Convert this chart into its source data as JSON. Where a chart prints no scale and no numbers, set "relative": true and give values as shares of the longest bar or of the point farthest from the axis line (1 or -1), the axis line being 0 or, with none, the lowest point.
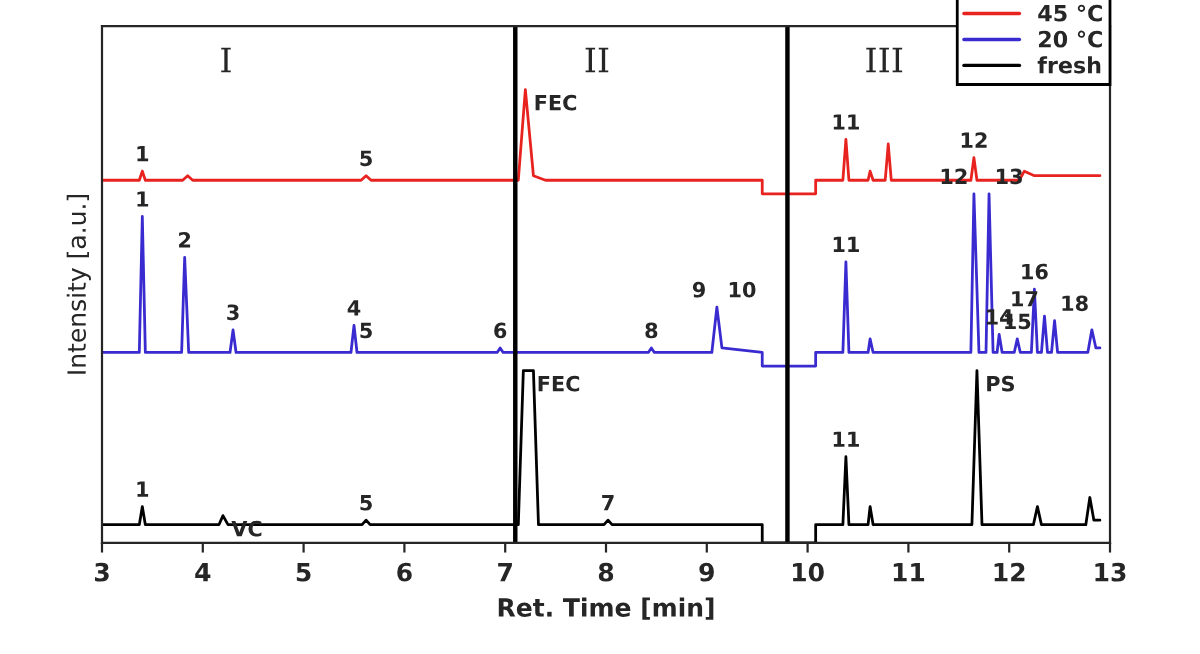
{
  "chart_data": {
    "type": "line",
    "relative": true,
    "xlabel": "Ret. Time [min]",
    "ylabel": "Intensity [a.u.]",
    "xlim": [
      3,
      13
    ],
    "xticks": [
      3,
      4,
      5,
      6,
      7,
      8,
      9,
      10,
      11,
      12,
      13
    ],
    "legend": "top right",
    "grid": false,
    "marker": "none",
    "line_style": "solid",
    "series": [
      {
        "name": "45 °C",
        "color": "#e8231f",
        "x": [
          3.0,
          3.37,
          3.4,
          3.43,
          3.8,
          3.85,
          3.9,
          5.57,
          5.62,
          5.67,
          7.13,
          7.2,
          7.28,
          7.4,
          9.55,
          9.55,
          10.08,
          10.08,
          10.35,
          10.38,
          10.41,
          10.6,
          10.62,
          10.65,
          10.77,
          10.8,
          10.83,
          11.62,
          11.65,
          11.68,
          12.1,
          12.15,
          12.25,
          12.9
        ],
        "values": [
          0.8,
          0.8,
          0.82,
          0.8,
          0.8,
          0.81,
          0.8,
          0.8,
          0.81,
          0.8,
          0.8,
          1.0,
          0.81,
          0.8,
          0.8,
          0.77,
          0.77,
          0.8,
          0.8,
          0.89,
          0.8,
          0.8,
          0.82,
          0.8,
          0.8,
          0.88,
          0.8,
          0.8,
          0.85,
          0.8,
          0.8,
          0.82,
          0.81,
          0.81
        ]
      },
      {
        "name": "20 °C",
        "color": "#3a2bd0",
        "x": [
          3.0,
          3.37,
          3.4,
          3.43,
          3.79,
          3.82,
          3.86,
          4.27,
          4.3,
          4.33,
          5.47,
          5.5,
          5.53,
          6.92,
          6.95,
          6.98,
          8.42,
          8.45,
          8.48,
          9.05,
          9.1,
          9.15,
          9.55,
          9.55,
          10.08,
          10.08,
          10.35,
          10.38,
          10.41,
          10.6,
          10.62,
          10.65,
          11.62,
          11.65,
          11.7,
          11.77,
          11.8,
          11.84,
          11.88,
          11.9,
          11.93,
          12.05,
          12.08,
          12.11,
          12.22,
          12.25,
          12.28,
          12.32,
          12.35,
          12.38,
          12.42,
          12.45,
          12.48,
          12.78,
          12.82,
          12.86,
          12.9
        ],
        "values": [
          0.42,
          0.42,
          0.72,
          0.42,
          0.42,
          0.63,
          0.42,
          0.42,
          0.47,
          0.42,
          0.42,
          0.48,
          0.42,
          0.42,
          0.43,
          0.42,
          0.42,
          0.43,
          0.42,
          0.42,
          0.52,
          0.43,
          0.42,
          0.39,
          0.39,
          0.42,
          0.42,
          0.62,
          0.42,
          0.42,
          0.45,
          0.42,
          0.42,
          0.77,
          0.42,
          0.42,
          0.77,
          0.42,
          0.42,
          0.46,
          0.42,
          0.42,
          0.45,
          0.42,
          0.42,
          0.56,
          0.42,
          0.42,
          0.5,
          0.42,
          0.42,
          0.49,
          0.42,
          0.42,
          0.47,
          0.43,
          0.43
        ]
      },
      {
        "name": "fresh",
        "color": "#000000",
        "x": [
          3.0,
          3.37,
          3.4,
          3.43,
          4.16,
          4.2,
          4.25,
          5.58,
          5.62,
          5.66,
          7.13,
          7.18,
          7.28,
          7.33,
          7.98,
          8.02,
          8.06,
          9.55,
          9.55,
          10.08,
          10.08,
          10.35,
          10.38,
          10.41,
          10.6,
          10.62,
          10.65,
          11.63,
          11.68,
          11.73,
          12.24,
          12.28,
          12.32,
          12.76,
          12.8,
          12.84,
          12.9
        ],
        "values": [
          0.04,
          0.04,
          0.08,
          0.04,
          0.04,
          0.06,
          0.04,
          0.04,
          0.05,
          0.04,
          0.04,
          0.38,
          0.38,
          0.04,
          0.04,
          0.05,
          0.04,
          0.04,
          0.0,
          0.0,
          0.04,
          0.04,
          0.19,
          0.04,
          0.04,
          0.08,
          0.04,
          0.04,
          0.38,
          0.04,
          0.04,
          0.08,
          0.04,
          0.04,
          0.1,
          0.05,
          0.05
        ]
      }
    ],
    "ref_lines": [
      {
        "axis": "x",
        "value": 7.1,
        "color": "#000000"
      },
      {
        "axis": "x",
        "value": 9.8,
        "color": "#000000"
      }
    ],
    "annotations": [
      "I",
      "II",
      "III",
      {
        "text": "1",
        "x": 3.4,
        "y": 0.82
      },
      {
        "text": "5",
        "x": 5.62,
        "y": 0.81
      },
      {
        "text": "FEC",
        "x": 7.2,
        "y": 1.0
      },
      {
        "text": "11",
        "x": 10.38,
        "y": 0.89
      },
      {
        "text": "12",
        "x": 11.65,
        "y": 0.85
      },
      {
        "text": "1",
        "x": 3.4,
        "y": 0.72
      },
      {
        "text": "2",
        "x": 3.82,
        "y": 0.63
      },
      {
        "text": "3",
        "x": 4.3,
        "y": 0.47
      },
      {
        "text": "4",
        "x": 5.5,
        "y": 0.48
      },
      {
        "text": "5",
        "x": 5.62,
        "y": 0.43
      },
      {
        "text": "6",
        "x": 6.95,
        "y": 0.43
      },
      {
        "text": "8",
        "x": 8.45,
        "y": 0.43
      },
      {
        "text": "9",
        "x": 9.05,
        "y": 0.52
      },
      {
        "text": "10",
        "x": 9.15,
        "y": 0.52
      },
      {
        "text": "11",
        "x": 10.38,
        "y": 0.62
      },
      {
        "text": "12",
        "x": 11.65,
        "y": 0.77
      },
      {
        "text": "13",
        "x": 11.8,
        "y": 0.77
      },
      {
        "text": "14",
        "x": 11.9,
        "y": 0.46
      },
      {
        "text": "15",
        "x": 12.08,
        "y": 0.45
      },
      {
        "text": "16",
        "x": 12.25,
        "y": 0.56
      },
      {
        "text": "17",
        "x": 12.35,
        "y": 0.5
      },
      {
        "text": "18",
        "x": 12.45,
        "y": 0.49
      },
      {
        "text": "1",
        "x": 3.4,
        "y": 0.08
      },
      {
        "text": "VC",
        "x": 4.2,
        "y": 0.06
      },
      {
        "text": "5",
        "x": 5.62,
        "y": 0.05
      },
      {
        "text": "FEC",
        "x": 7.23,
        "y": 0.38
      },
      {
        "text": "7",
        "x": 8.02,
        "y": 0.05
      },
      {
        "text": "11",
        "x": 10.38,
        "y": 0.19
      },
      {
        "text": "PS",
        "x": 11.68,
        "y": 0.38
      }
    ]
  }
}
